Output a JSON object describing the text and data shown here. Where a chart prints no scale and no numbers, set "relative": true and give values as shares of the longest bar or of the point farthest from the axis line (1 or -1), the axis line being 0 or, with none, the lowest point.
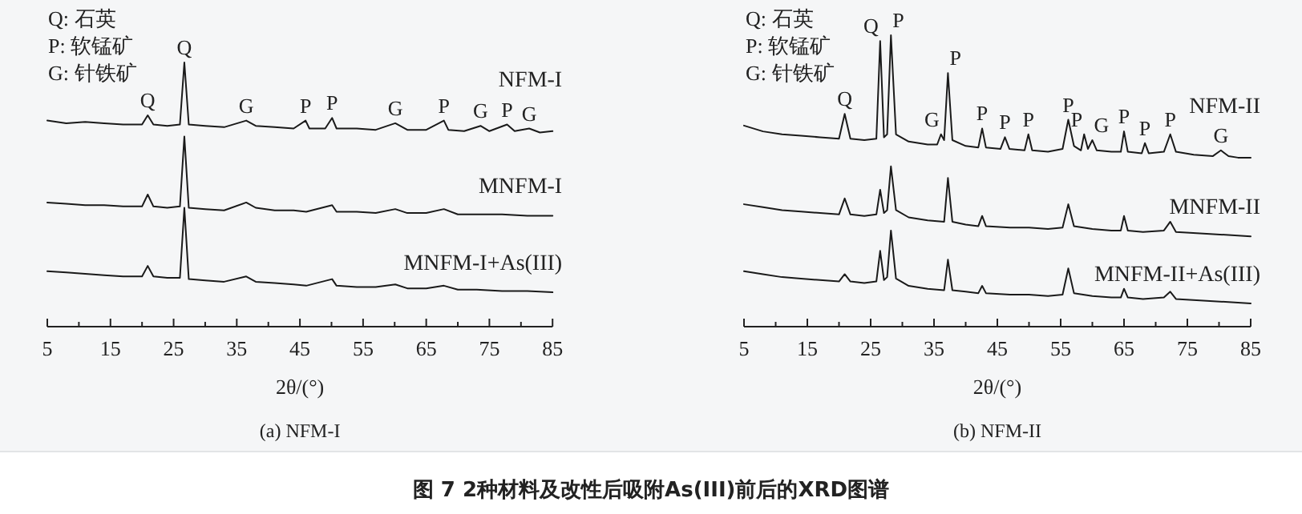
{
  "chart_data": [
    {
      "type": "line",
      "title": "(a) NFM-I",
      "xlabel": "2θ/(°)",
      "relative": true,
      "xlim": [
        5,
        85
      ],
      "xticks": [
        5,
        {
          "value": 10,
          "label": null
        },
        15,
        {
          "value": 20,
          "label": null
        },
        25,
        {
          "value": 30,
          "label": null
        },
        35,
        {
          "value": 40,
          "label": null
        },
        45,
        {
          "value": 50,
          "label": null
        },
        55,
        {
          "value": 60,
          "label": null
        },
        65,
        {
          "value": 70,
          "label": null
        },
        75,
        {
          "value": 80,
          "label": null
        },
        85
      ],
      "series": [
        {
          "name": "NFM-I",
          "color": "#1a1a1a",
          "x": [
            5,
            8,
            11,
            14,
            17,
            20,
            20.9,
            21.8,
            24,
            26,
            26.7,
            27.4,
            30,
            33,
            36.5,
            38,
            41,
            44,
            45.9,
            46.5,
            49,
            50.1,
            50.8,
            54,
            57,
            60.1,
            62,
            65,
            67.8,
            68.5,
            71,
            73.6,
            75,
            77.8,
            79,
            81.3,
            83,
            85
          ],
          "values": [
            0.78,
            0.77,
            0.775,
            0.77,
            0.765,
            0.765,
            0.8,
            0.765,
            0.76,
            0.765,
            1.0,
            0.765,
            0.76,
            0.755,
            0.78,
            0.76,
            0.755,
            0.75,
            0.78,
            0.75,
            0.75,
            0.79,
            0.75,
            0.75,
            0.745,
            0.77,
            0.745,
            0.745,
            0.78,
            0.745,
            0.74,
            0.76,
            0.74,
            0.765,
            0.74,
            0.75,
            0.735,
            0.74
          ]
        },
        {
          "name": "MNFM-I",
          "color": "#1a1a1a",
          "x": [
            5,
            8,
            11,
            14,
            17,
            20,
            20.9,
            21.8,
            24,
            26,
            26.7,
            27.4,
            30,
            33,
            36.5,
            38,
            41,
            44,
            46,
            50.1,
            50.8,
            54,
            57,
            60.1,
            62,
            65,
            67.8,
            70,
            73,
            77,
            81,
            85
          ],
          "values": [
            0.47,
            0.465,
            0.46,
            0.46,
            0.455,
            0.455,
            0.5,
            0.455,
            0.45,
            0.455,
            0.72,
            0.45,
            0.445,
            0.44,
            0.47,
            0.45,
            0.44,
            0.44,
            0.435,
            0.46,
            0.435,
            0.435,
            0.43,
            0.445,
            0.43,
            0.43,
            0.445,
            0.425,
            0.425,
            0.425,
            0.42,
            0.42
          ]
        },
        {
          "name": "MNFM-I+As(III)",
          "color": "#1a1a1a",
          "x": [
            5,
            8,
            11,
            14,
            17,
            20,
            20.9,
            21.8,
            24,
            26,
            26.7,
            27.4,
            30,
            33,
            36.5,
            38,
            41,
            44,
            46,
            50.1,
            50.8,
            54,
            57,
            60.1,
            62,
            65,
            67.8,
            70,
            73,
            77,
            81,
            85
          ],
          "values": [
            0.21,
            0.205,
            0.2,
            0.195,
            0.19,
            0.19,
            0.23,
            0.19,
            0.185,
            0.185,
            0.45,
            0.18,
            0.175,
            0.17,
            0.19,
            0.17,
            0.165,
            0.16,
            0.155,
            0.18,
            0.155,
            0.15,
            0.15,
            0.16,
            0.145,
            0.145,
            0.155,
            0.14,
            0.14,
            0.135,
            0.135,
            0.13
          ]
        }
      ],
      "annotations": [
        "Q: 石英",
        "P: 软锰矿",
        "G: 针铁矿",
        {
          "text": "Q",
          "x": 20.9,
          "y": 0.8
        },
        {
          "text": "Q",
          "x": 26.7,
          "y": 1.0
        },
        {
          "text": "G",
          "x": 36.5,
          "y": 0.78
        },
        {
          "text": "P",
          "x": 45.9,
          "y": 0.78
        },
        {
          "text": "P",
          "x": 50.1,
          "y": 0.79
        },
        {
          "text": "G",
          "x": 60.1,
          "y": 0.77
        },
        {
          "text": "P",
          "x": 67.8,
          "y": 0.78
        },
        {
          "text": "G",
          "x": 73.6,
          "y": 0.76
        },
        {
          "text": "P",
          "x": 77.8,
          "y": 0.765
        },
        {
          "text": "G",
          "x": 81.3,
          "y": 0.75
        },
        "图 7  2种材料及改性后吸附As(III)前后的XRD图谱"
      ]
    },
    {
      "type": "line",
      "title": "(b) NFM-II",
      "xlabel": "2θ/(°)",
      "relative": true,
      "xlim": [
        5,
        85
      ],
      "xticks": [
        5,
        {
          "value": 10,
          "label": null
        },
        15,
        {
          "value": 20,
          "label": null
        },
        25,
        {
          "value": 30,
          "label": null
        },
        35,
        {
          "value": 40,
          "label": null
        },
        45,
        {
          "value": 50,
          "label": null
        },
        55,
        {
          "value": 60,
          "label": null
        },
        65,
        {
          "value": 70,
          "label": null
        },
        75,
        {
          "value": 80,
          "label": null
        },
        85
      ],
      "series": [
        {
          "name": "NFM-II",
          "color": "#1a1a1a",
          "x": [
            5,
            8,
            11,
            14,
            17,
            20,
            20.9,
            21.8,
            24,
            25.9,
            26.5,
            27.1,
            27.6,
            28.2,
            29,
            31,
            34,
            35.5,
            36.1,
            36.6,
            37.2,
            37.9,
            40,
            42,
            42.6,
            43.2,
            45.5,
            46.2,
            46.9,
            49.3,
            49.9,
            50.5,
            53,
            55.3,
            56.2,
            57.1,
            58.2,
            58.7,
            59.3,
            60,
            60.7,
            63,
            64.5,
            65,
            65.6,
            67.8,
            68.3,
            68.9,
            71.3,
            72.3,
            73.2,
            76,
            79,
            80.3,
            81.5,
            83,
            85
          ],
          "values": [
            0.69,
            0.67,
            0.66,
            0.655,
            0.65,
            0.645,
            0.73,
            0.645,
            0.64,
            0.645,
            0.98,
            0.65,
            0.66,
            1.0,
            0.66,
            0.635,
            0.625,
            0.625,
            0.66,
            0.64,
            0.87,
            0.64,
            0.62,
            0.615,
            0.68,
            0.615,
            0.61,
            0.65,
            0.61,
            0.605,
            0.66,
            0.605,
            0.6,
            0.61,
            0.71,
            0.62,
            0.605,
            0.66,
            0.61,
            0.64,
            0.605,
            0.6,
            0.6,
            0.67,
            0.6,
            0.595,
            0.63,
            0.595,
            0.6,
            0.66,
            0.6,
            0.59,
            0.585,
            0.605,
            0.585,
            0.58,
            0.58
          ]
        },
        {
          "name": "MNFM-II",
          "color": "#1a1a1a",
          "x": [
            5,
            8,
            11,
            14,
            17,
            20,
            20.9,
            21.8,
            24,
            25.9,
            26.5,
            27.1,
            27.6,
            28.2,
            29,
            31,
            34,
            36.6,
            37.2,
            37.9,
            40,
            42,
            42.6,
            43.2,
            47,
            50,
            53,
            55.3,
            56.2,
            57.1,
            60,
            63,
            64.5,
            65,
            65.6,
            68,
            71.3,
            72.3,
            73.2,
            77,
            81,
            85
          ],
          "values": [
            0.42,
            0.41,
            0.4,
            0.395,
            0.39,
            0.385,
            0.44,
            0.385,
            0.38,
            0.385,
            0.47,
            0.39,
            0.4,
            0.55,
            0.4,
            0.375,
            0.365,
            0.36,
            0.51,
            0.36,
            0.35,
            0.345,
            0.38,
            0.345,
            0.34,
            0.34,
            0.335,
            0.34,
            0.42,
            0.345,
            0.335,
            0.33,
            0.33,
            0.38,
            0.33,
            0.325,
            0.33,
            0.36,
            0.325,
            0.32,
            0.315,
            0.31
          ]
        },
        {
          "name": "MNFM-II+As(III)",
          "color": "#1a1a1a",
          "x": [
            5,
            8,
            11,
            14,
            17,
            20,
            20.9,
            21.8,
            24,
            25.9,
            26.5,
            27.1,
            27.6,
            28.2,
            29,
            31,
            34,
            36.6,
            37.2,
            37.9,
            40,
            42,
            42.6,
            43.2,
            47,
            50,
            53,
            55.3,
            56.2,
            57.1,
            60,
            63,
            64.5,
            65,
            65.6,
            68,
            71.3,
            72.3,
            73.2,
            77,
            81,
            85
          ],
          "values": [
            0.19,
            0.18,
            0.17,
            0.165,
            0.16,
            0.155,
            0.18,
            0.155,
            0.15,
            0.155,
            0.26,
            0.16,
            0.17,
            0.33,
            0.165,
            0.14,
            0.13,
            0.125,
            0.23,
            0.125,
            0.12,
            0.115,
            0.14,
            0.115,
            0.11,
            0.11,
            0.105,
            0.11,
            0.2,
            0.115,
            0.105,
            0.1,
            0.1,
            0.13,
            0.1,
            0.095,
            0.1,
            0.12,
            0.095,
            0.09,
            0.085,
            0.08
          ]
        }
      ],
      "annotations": [
        "Q: 石英",
        "P: 软锰矿",
        "G: 针铁矿",
        {
          "text": "Q",
          "x": 20.9,
          "y": 0.73
        },
        {
          "text": "Q",
          "x": 26.5,
          "y": 0.98
        },
        {
          "text": "P",
          "x": 28.2,
          "y": 1.0
        },
        {
          "text": "G",
          "x": 36.1,
          "y": 0.66
        },
        {
          "text": "P",
          "x": 37.2,
          "y": 0.87
        },
        {
          "text": "P",
          "x": 42.6,
          "y": 0.68
        },
        {
          "text": "P",
          "x": 46.2,
          "y": 0.65
        },
        {
          "text": "P",
          "x": 49.9,
          "y": 0.66
        },
        {
          "text": "P",
          "x": 56.2,
          "y": 0.71
        },
        {
          "text": "P",
          "x": 58.7,
          "y": 0.66
        },
        {
          "text": "G",
          "x": 60,
          "y": 0.64
        },
        {
          "text": "P",
          "x": 65,
          "y": 0.67
        },
        {
          "text": "P",
          "x": 68.3,
          "y": 0.63
        },
        {
          "text": "P",
          "x": 72.3,
          "y": 0.66
        },
        {
          "text": "G",
          "x": 80.3,
          "y": 0.605
        }
      ]
    }
  ]
}
